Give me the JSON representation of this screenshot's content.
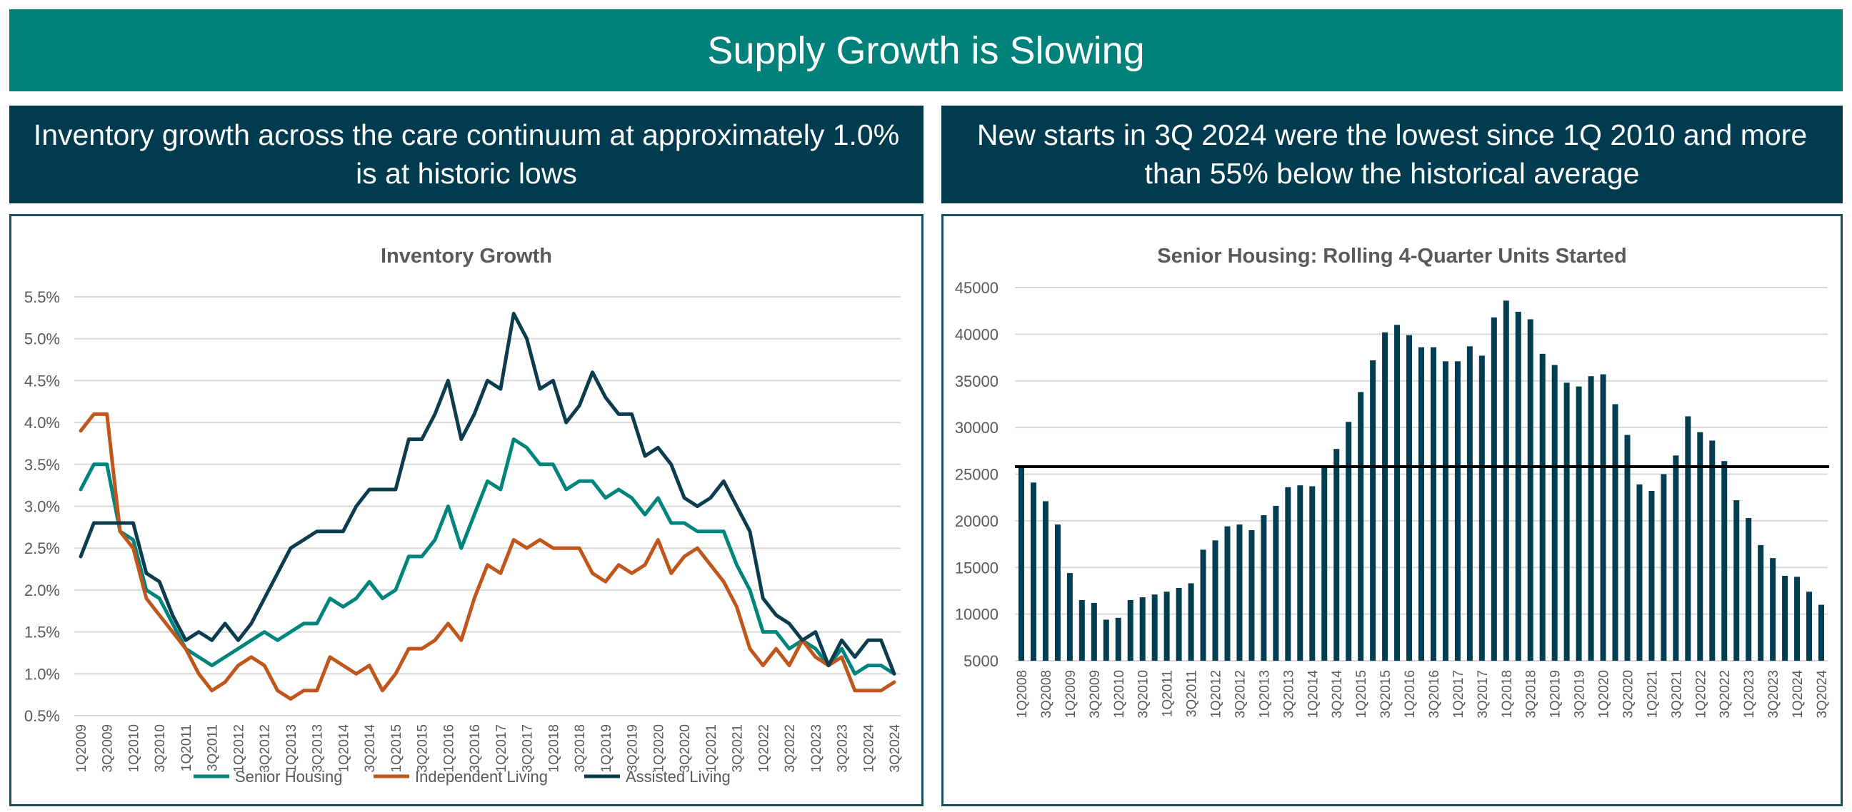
{
  "header": {
    "title": "Supply Growth is Slowing"
  },
  "left_subheader": "Inventory growth across the care continuum at approximately 1.0% is at historic lows",
  "right_subheader": "New starts in 3Q 2024 were the lowest since 1Q 2010 and more than 55% below the historical average",
  "colors": {
    "banner": "#00827b",
    "subheader": "#003b4f",
    "senior_housing": "#00857d",
    "independent_living": "#c0561c",
    "assisted_living": "#0b3d4f",
    "bars": "#023d51",
    "average_line": "#000000"
  },
  "chart_data": [
    {
      "type": "line",
      "title": "Inventory Growth",
      "ylim": [
        0.5,
        5.5
      ],
      "yticks": [
        "0.5%",
        "1.0%",
        "1.5%",
        "2.0%",
        "2.5%",
        "3.0%",
        "3.5%",
        "4.0%",
        "4.5%",
        "5.0%",
        "5.5%"
      ],
      "grid": true,
      "legend": "bottom",
      "x": [
        "1Q2009",
        "2Q2009",
        "3Q2009",
        "4Q2009",
        "1Q2010",
        "2Q2010",
        "3Q2010",
        "4Q2010",
        "1Q2011",
        "2Q2011",
        "3Q2011",
        "4Q2011",
        "1Q2012",
        "2Q2012",
        "3Q2012",
        "4Q2012",
        "1Q2013",
        "2Q2013",
        "3Q2013",
        "4Q2013",
        "1Q2014",
        "2Q2014",
        "3Q2014",
        "4Q2014",
        "1Q2015",
        "2Q2015",
        "3Q2015",
        "4Q2015",
        "1Q2016",
        "2Q2016",
        "3Q2016",
        "4Q2016",
        "1Q2017",
        "2Q2017",
        "3Q2017",
        "4Q2017",
        "1Q2018",
        "2Q2018",
        "3Q2018",
        "4Q2018",
        "1Q2019",
        "2Q2019",
        "3Q2019",
        "4Q2019",
        "1Q2020",
        "2Q2020",
        "3Q2020",
        "4Q2020",
        "1Q2021",
        "2Q2021",
        "3Q2021",
        "4Q2021",
        "1Q2022",
        "2Q2022",
        "3Q2022",
        "4Q2022",
        "1Q2023",
        "2Q2023",
        "3Q2023",
        "4Q2023",
        "1Q2024",
        "2Q2024",
        "3Q2024"
      ],
      "xtick_labels": [
        "1Q2009",
        "3Q2009",
        "1Q2010",
        "3Q2010",
        "1Q2011",
        "3Q2011",
        "1Q2012",
        "3Q2012",
        "1Q2013",
        "3Q2013",
        "1Q2014",
        "3Q2014",
        "1Q2015",
        "3Q2015",
        "1Q2016",
        "3Q2016",
        "1Q2017",
        "3Q2017",
        "1Q2018",
        "3Q2018",
        "1Q2019",
        "3Q2019",
        "1Q2020",
        "3Q2020",
        "1Q2021",
        "3Q2021",
        "1Q2022",
        "3Q2022",
        "1Q2023",
        "3Q2023",
        "1Q2024",
        "3Q2024"
      ],
      "series": [
        {
          "name": "Senior Housing",
          "color": "#00857d",
          "values": [
            3.2,
            3.5,
            3.5,
            2.7,
            2.6,
            2.0,
            1.9,
            1.6,
            1.3,
            1.2,
            1.1,
            1.2,
            1.3,
            1.4,
            1.5,
            1.4,
            1.5,
            1.6,
            1.6,
            1.9,
            1.8,
            1.9,
            2.1,
            1.9,
            2.0,
            2.4,
            2.4,
            2.6,
            3.0,
            2.5,
            2.9,
            3.3,
            3.2,
            3.8,
            3.7,
            3.5,
            3.5,
            3.2,
            3.3,
            3.3,
            3.1,
            3.2,
            3.1,
            2.9,
            3.1,
            2.8,
            2.8,
            2.7,
            2.7,
            2.7,
            2.3,
            2.0,
            1.5,
            1.5,
            1.3,
            1.4,
            1.3,
            1.1,
            1.3,
            1.0,
            1.1,
            1.1,
            1.0
          ]
        },
        {
          "name": "Independent Living",
          "color": "#c0561c",
          "values": [
            3.9,
            4.1,
            4.1,
            2.7,
            2.5,
            1.9,
            1.7,
            1.5,
            1.3,
            1.0,
            0.8,
            0.9,
            1.1,
            1.2,
            1.1,
            0.8,
            0.7,
            0.8,
            0.8,
            1.2,
            1.1,
            1.0,
            1.1,
            0.8,
            1.0,
            1.3,
            1.3,
            1.4,
            1.6,
            1.4,
            1.9,
            2.3,
            2.2,
            2.6,
            2.5,
            2.6,
            2.5,
            2.5,
            2.5,
            2.2,
            2.1,
            2.3,
            2.2,
            2.3,
            2.6,
            2.2,
            2.4,
            2.5,
            2.3,
            2.1,
            1.8,
            1.3,
            1.1,
            1.3,
            1.1,
            1.4,
            1.2,
            1.1,
            1.2,
            0.8,
            0.8,
            0.8,
            0.9
          ]
        },
        {
          "name": "Assisted Living",
          "color": "#0b3d4f",
          "values": [
            2.4,
            2.8,
            2.8,
            2.8,
            2.8,
            2.2,
            2.1,
            1.7,
            1.4,
            1.5,
            1.4,
            1.6,
            1.4,
            1.6,
            1.9,
            2.2,
            2.5,
            2.6,
            2.7,
            2.7,
            2.7,
            3.0,
            3.2,
            3.2,
            3.2,
            3.8,
            3.8,
            4.1,
            4.5,
            3.8,
            4.1,
            4.5,
            4.4,
            5.3,
            5.0,
            4.4,
            4.5,
            4.0,
            4.2,
            4.6,
            4.3,
            4.1,
            4.1,
            3.6,
            3.7,
            3.5,
            3.1,
            3.0,
            3.1,
            3.3,
            3.0,
            2.7,
            1.9,
            1.7,
            1.6,
            1.4,
            1.5,
            1.1,
            1.4,
            1.2,
            1.4,
            1.4,
            1.0
          ]
        }
      ]
    },
    {
      "type": "bar",
      "title": "Senior Housing: Rolling 4-Quarter Units Started",
      "ylim": [
        5000,
        45000
      ],
      "yticks": [
        "5000",
        "10000",
        "15000",
        "20000",
        "25000",
        "30000",
        "35000",
        "40000",
        "45000"
      ],
      "grid": true,
      "reference_line": 25800,
      "categories": [
        "1Q2008",
        "2Q2008",
        "3Q2008",
        "4Q2008",
        "1Q2009",
        "2Q2009",
        "3Q2009",
        "4Q2009",
        "1Q2010",
        "2Q2010",
        "3Q2010",
        "4Q2010",
        "1Q2011",
        "2Q2011",
        "3Q2011",
        "4Q2011",
        "1Q2012",
        "2Q2012",
        "3Q2012",
        "4Q2012",
        "1Q2013",
        "2Q2013",
        "3Q2013",
        "4Q2013",
        "1Q2014",
        "2Q2014",
        "3Q2014",
        "4Q2014",
        "1Q2015",
        "2Q2015",
        "3Q2015",
        "4Q2015",
        "1Q2016",
        "2Q2016",
        "3Q2016",
        "4Q2016",
        "1Q2017",
        "2Q2017",
        "3Q2017",
        "4Q2017",
        "1Q2018",
        "2Q2018",
        "3Q2018",
        "4Q2018",
        "1Q2019",
        "2Q2019",
        "3Q2019",
        "4Q2019",
        "1Q2020",
        "2Q2020",
        "3Q2020",
        "4Q2020",
        "1Q2021",
        "2Q2021",
        "3Q2021",
        "4Q2021",
        "1Q2022",
        "2Q2022",
        "3Q2022",
        "4Q2022",
        "1Q2023",
        "2Q2023",
        "3Q2023",
        "4Q2023",
        "1Q2024",
        "2Q2024",
        "3Q2024"
      ],
      "xtick_labels": [
        "1Q2008",
        "3Q2008",
        "1Q2009",
        "3Q2009",
        "1Q2010",
        "3Q2010",
        "1Q2011",
        "3Q2011",
        "1Q2012",
        "3Q2012",
        "1Q2013",
        "3Q2013",
        "1Q2014",
        "3Q2014",
        "1Q2015",
        "3Q2015",
        "1Q2016",
        "3Q2016",
        "1Q2017",
        "3Q2017",
        "1Q2018",
        "3Q2018",
        "1Q2019",
        "3Q2019",
        "1Q2020",
        "3Q2020",
        "1Q2021",
        "3Q2021",
        "1Q2022",
        "3Q2022",
        "1Q2023",
        "3Q2023",
        "1Q2024",
        "3Q2024"
      ],
      "values": [
        25800,
        24100,
        22100,
        19600,
        14400,
        11500,
        11200,
        9400,
        9600,
        11500,
        11800,
        12100,
        12400,
        12800,
        13300,
        16900,
        17900,
        19400,
        19600,
        19000,
        20600,
        21600,
        23600,
        23800,
        23700,
        25700,
        27700,
        30600,
        33800,
        37200,
        40200,
        41000,
        39900,
        38600,
        38600,
        37100,
        37100,
        38700,
        37700,
        41800,
        43600,
        42400,
        41600,
        37900,
        36700,
        34800,
        34400,
        35500,
        35700,
        32500,
        29200,
        23900,
        23200,
        25000,
        27000,
        31200,
        29500,
        28600,
        26400,
        22200,
        20300,
        17400,
        16000,
        14100,
        14000,
        12400,
        11000
      ]
    }
  ]
}
